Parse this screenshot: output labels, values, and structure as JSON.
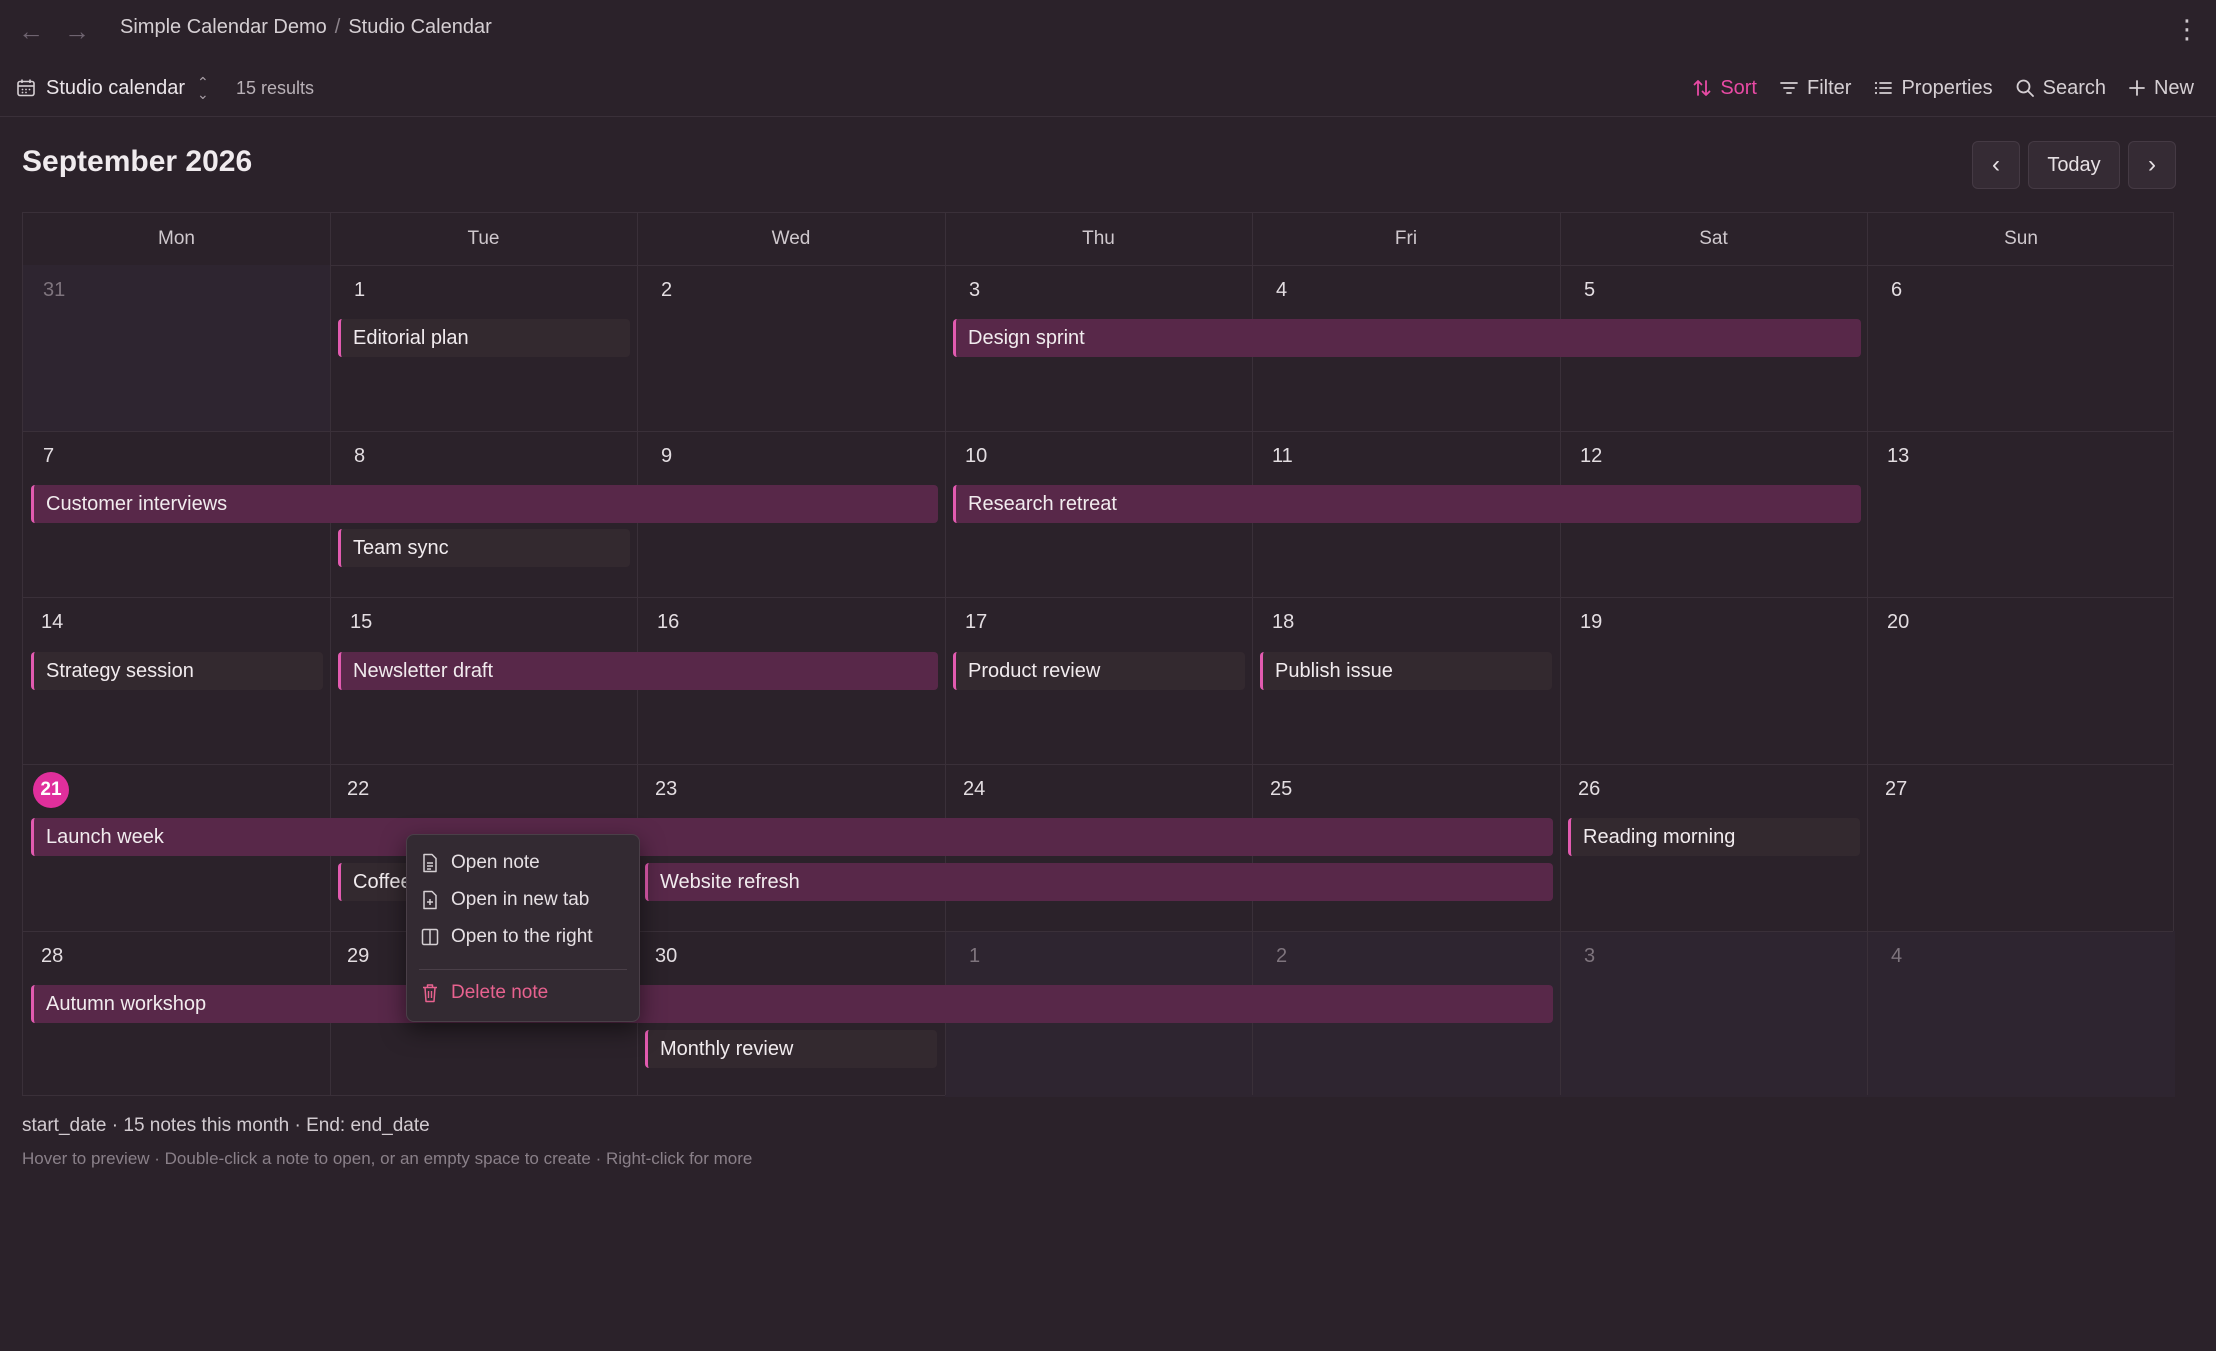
{
  "breadcrumb": {
    "parent": "Simple Calendar Demo",
    "separator": "/",
    "current": "Studio Calendar"
  },
  "toolbar": {
    "view_name": "Studio calendar",
    "results": "15 results",
    "sort": "Sort",
    "filter": "Filter",
    "properties": "Properties",
    "search": "Search",
    "new": "New"
  },
  "calendar": {
    "month_title": "September 2026",
    "today_label": "Today",
    "weekdays": [
      "Mon",
      "Tue",
      "Wed",
      "Thu",
      "Fri",
      "Sat",
      "Sun"
    ],
    "days": [
      "31",
      "1",
      "2",
      "3",
      "4",
      "5",
      "6",
      "7",
      "8",
      "9",
      "10",
      "11",
      "12",
      "13",
      "14",
      "15",
      "16",
      "17",
      "18",
      "19",
      "20",
      "21",
      "22",
      "23",
      "24",
      "25",
      "26",
      "27",
      "28",
      "29",
      "30",
      "1",
      "2",
      "3",
      "4"
    ],
    "today_day": "21"
  },
  "events": [
    "Editorial plan",
    "Design sprint",
    "Customer interviews",
    "Research retreat",
    "Team sync",
    "Strategy session",
    "Newsletter draft",
    "Product review",
    "Publish issue",
    "Launch week",
    "Reading morning",
    "Coffee",
    "Website refresh",
    "Autumn workshop",
    "Monthly review"
  ],
  "context_menu": {
    "open_note": "Open note",
    "open_new_tab": "Open in new tab",
    "open_right": "Open to the right",
    "delete_note": "Delete note"
  },
  "footer": {
    "summary": "start_date · 15 notes this month · End: end_date",
    "hint": "Hover to preview · Double-click a note to open, or an empty space to create · Right-click for more"
  },
  "colors": {
    "accent": "#e02f9c",
    "event_bar": "#582849",
    "background": "#2b222a"
  }
}
